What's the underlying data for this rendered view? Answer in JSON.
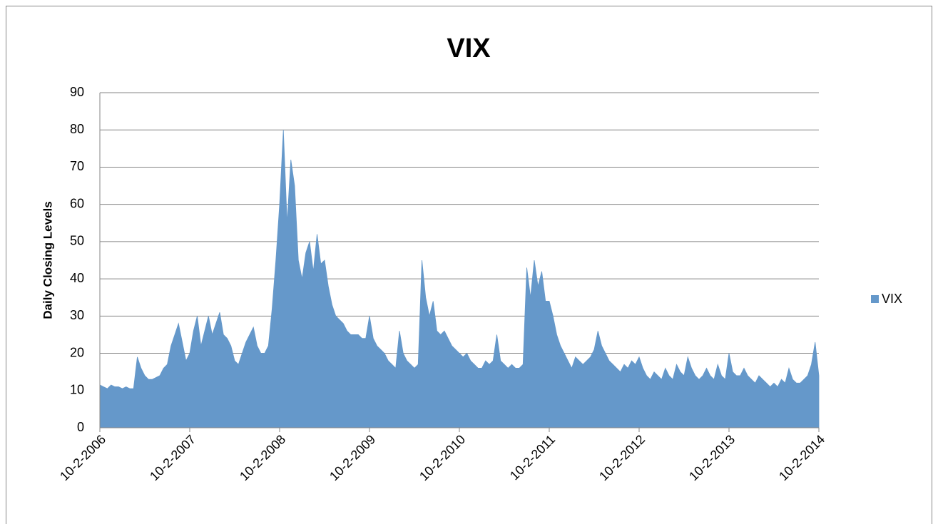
{
  "chart_data": {
    "type": "area",
    "title": "VIX",
    "y_label": "Daily Closing Levels",
    "categories": [
      "10-2-2006",
      null,
      null,
      null,
      null,
      null,
      null,
      null,
      null,
      null,
      null,
      null,
      null,
      null,
      null,
      null,
      null,
      null,
      null,
      null,
      null,
      null,
      null,
      null,
      "10-2-2007",
      null,
      null,
      null,
      null,
      null,
      null,
      null,
      null,
      null,
      null,
      null,
      null,
      null,
      null,
      null,
      null,
      null,
      null,
      null,
      null,
      null,
      null,
      null,
      "10-2-2008",
      null,
      null,
      null,
      null,
      null,
      null,
      null,
      null,
      null,
      null,
      null,
      null,
      null,
      null,
      null,
      null,
      null,
      null,
      null,
      null,
      null,
      null,
      null,
      "10-2-2009",
      null,
      null,
      null,
      null,
      null,
      null,
      null,
      null,
      null,
      null,
      null,
      null,
      null,
      null,
      null,
      null,
      null,
      null,
      null,
      null,
      null,
      null,
      null,
      "10-2-2010",
      null,
      null,
      null,
      null,
      null,
      null,
      null,
      null,
      null,
      null,
      null,
      null,
      null,
      null,
      null,
      null,
      null,
      null,
      null,
      null,
      null,
      null,
      null,
      "10-2-2011",
      null,
      null,
      null,
      null,
      null,
      null,
      null,
      null,
      null,
      null,
      null,
      null,
      null,
      null,
      null,
      null,
      null,
      null,
      null,
      null,
      null,
      null,
      null,
      "10-2-2012",
      null,
      null,
      null,
      null,
      null,
      null,
      null,
      null,
      null,
      null,
      null,
      null,
      null,
      null,
      null,
      null,
      null,
      null,
      null,
      null,
      null,
      null,
      null,
      "10-2-2013",
      null,
      null,
      null,
      null,
      null,
      null,
      null,
      null,
      null,
      null,
      null,
      null,
      null,
      null,
      null,
      null,
      null,
      null,
      null,
      null,
      null,
      null,
      null,
      "10-2-2014"
    ],
    "series": [
      {
        "name": "VIX",
        "color": "#6598ca",
        "values": [
          11.5,
          11,
          10.5,
          11.5,
          11,
          11,
          10.5,
          11,
          10.5,
          10.5,
          19,
          16,
          14,
          13,
          13,
          13.5,
          14,
          16,
          17,
          22,
          25,
          28,
          23,
          18,
          20,
          26,
          30,
          22,
          26,
          30,
          25,
          28,
          31,
          25,
          24,
          22,
          18,
          17,
          20,
          23,
          25,
          27,
          22,
          20,
          20,
          22,
          32,
          45,
          60,
          80,
          55,
          72,
          65,
          45,
          40,
          47,
          50,
          42,
          52,
          44,
          45,
          38,
          33,
          30,
          29,
          28,
          26,
          25,
          25,
          25,
          24,
          24,
          30,
          24,
          22,
          21,
          20,
          18,
          17,
          16,
          26,
          20,
          18,
          17,
          16,
          17,
          45,
          35,
          30,
          34,
          26,
          25,
          26,
          24,
          22,
          21,
          20,
          19,
          20,
          18,
          17,
          16,
          16,
          18,
          17,
          18,
          25,
          18,
          17,
          16,
          17,
          16,
          16,
          17,
          43,
          35,
          45,
          38,
          42,
          34,
          34,
          30,
          25,
          22,
          20,
          18,
          16,
          19,
          18,
          17,
          18,
          19,
          21,
          26,
          22,
          20,
          18,
          17,
          16,
          15,
          17,
          16,
          18,
          17,
          19,
          16,
          14,
          13,
          15,
          14,
          13,
          16,
          14,
          13,
          17,
          15,
          14,
          19,
          16,
          14,
          13,
          14,
          16,
          14,
          13,
          17,
          14,
          13,
          20,
          15,
          14,
          14,
          16,
          14,
          13,
          12,
          14,
          13,
          12,
          11,
          12,
          11,
          13,
          12,
          16,
          13,
          12,
          12,
          13,
          14,
          17,
          23,
          14
        ]
      }
    ],
    "ylim": [
      0,
      90
    ],
    "yticks": [
      0,
      10,
      20,
      30,
      40,
      50,
      60,
      70,
      80,
      90
    ],
    "grid": true,
    "legend": "right"
  }
}
